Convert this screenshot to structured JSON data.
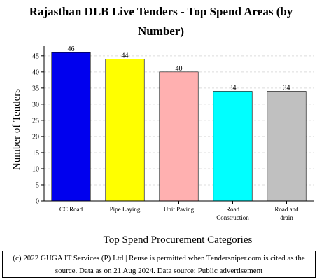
{
  "chart_data": {
    "type": "bar",
    "title_lines": [
      "Rajasthan DLB Live Tenders - Top Spend Areas (by",
      "Number)"
    ],
    "categories": [
      [
        "CC Road"
      ],
      [
        "Pipe Laying"
      ],
      [
        "Unit Paving"
      ],
      [
        "Road",
        "Construction"
      ],
      [
        "Road and",
        "drain"
      ]
    ],
    "values": [
      46,
      44,
      40,
      34,
      34
    ],
    "colors": [
      "#0000ee",
      "#ffff00",
      "#ffb0b0",
      "#00ffff",
      "#c0c0c0"
    ],
    "xlabel": "Top Spend Procurement Categories",
    "ylabel": "Number of Tenders",
    "ylim": [
      0,
      48
    ],
    "yticks": [
      0,
      5,
      10,
      15,
      20,
      25,
      30,
      35,
      40,
      45
    ],
    "grid": true,
    "legend": "none"
  },
  "footer": {
    "line1": "(c) 2022 GUGA IT Services (P) Ltd | Reuse is permitted when Tendersniper.com is cited as the",
    "line2": "source. Data as on 21 Aug 2024. Data source: Public advertisement"
  }
}
